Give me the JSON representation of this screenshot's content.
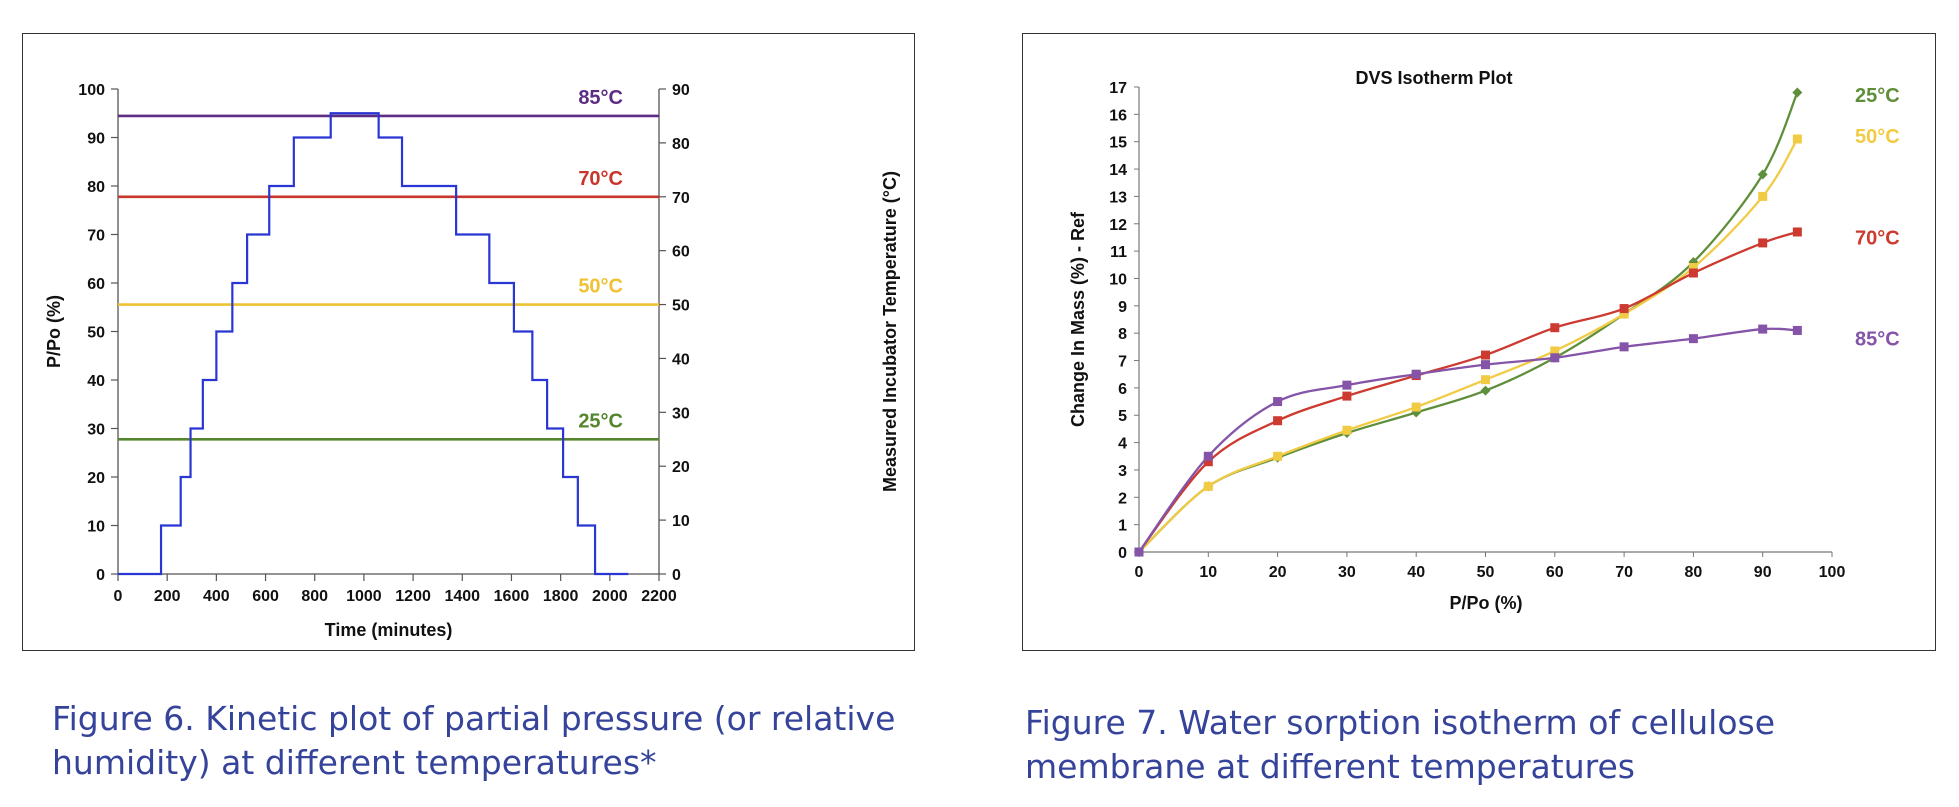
{
  "figure6": {
    "caption": "Figure 6.  Kinetic plot of partial pressure (or relative humidity) at different temperatures*"
  },
  "figure7": {
    "caption": "Figure 7.  Water sorption isotherm of cellulose membrane at different temperatures"
  },
  "chart_data": [
    {
      "type": "line",
      "title": "",
      "xlabel": "Time (minutes)",
      "ylabel": "P/Po (%)",
      "y2label": "Measured Incubator Temperature (°C)",
      "xlim": [
        0,
        2200
      ],
      "ylim": [
        0,
        100
      ],
      "y2lim": [
        0,
        90
      ],
      "xticks": [
        0,
        200,
        400,
        600,
        800,
        1000,
        1200,
        1400,
        1600,
        1800,
        2000,
        2200
      ],
      "yticks": [
        0,
        10,
        20,
        30,
        40,
        50,
        60,
        70,
        80,
        90,
        100
      ],
      "y2ticks": [
        0,
        10,
        20,
        30,
        40,
        50,
        60,
        70,
        80,
        90
      ],
      "grid": false,
      "series": [
        {
          "color": "#2a36d4",
          "step": true,
          "x": [
            0,
            175,
            255,
            295,
            345,
            400,
            465,
            525,
            615,
            715,
            865,
            1060,
            1155,
            1375,
            1510,
            1610,
            1685,
            1745,
            1810,
            1870,
            1940,
            2075
          ],
          "y": [
            0,
            10,
            20,
            30,
            40,
            50,
            60,
            70,
            80,
            90,
            95,
            90,
            80,
            70,
            60,
            50,
            40,
            30,
            20,
            10,
            0,
            0
          ]
        }
      ],
      "reference_lines": [
        {
          "label": "85°C",
          "temperature": 85,
          "color": "#5c2d83"
        },
        {
          "label": "70°C",
          "temperature": 70,
          "color": "#c8352b"
        },
        {
          "label": "50°C",
          "temperature": 50,
          "color": "#f0c233"
        },
        {
          "label": "25°C",
          "temperature": 25,
          "color": "#55862e"
        }
      ]
    },
    {
      "type": "line",
      "title": "DVS Isotherm Plot",
      "xlabel": "P/Po (%)",
      "ylabel": "Change In Mass (%) - Ref",
      "xlim": [
        0,
        100
      ],
      "ylim": [
        0,
        17
      ],
      "xticks": [
        0,
        10,
        20,
        30,
        40,
        50,
        60,
        70,
        80,
        90,
        100
      ],
      "yticks": [
        0,
        1,
        2,
        3,
        4,
        5,
        6,
        7,
        8,
        9,
        10,
        11,
        12,
        13,
        14,
        15,
        16,
        17
      ],
      "grid": false,
      "x": [
        0,
        10,
        20,
        30,
        40,
        50,
        60,
        70,
        80,
        90,
        95
      ],
      "series": [
        {
          "name": "25°C",
          "color": "#5f8f3a",
          "marker": "diamond",
          "values": [
            0,
            2.4,
            3.45,
            4.35,
            5.1,
            5.9,
            7.1,
            8.7,
            10.6,
            13.8,
            16.8
          ]
        },
        {
          "name": "50°C",
          "color": "#f2cb45",
          "marker": "square",
          "values": [
            0,
            2.4,
            3.5,
            4.45,
            5.3,
            6.3,
            7.35,
            8.7,
            10.4,
            13.0,
            15.1
          ]
        },
        {
          "name": "70°C",
          "color": "#cc3a30",
          "marker": "square",
          "values": [
            0,
            3.3,
            4.8,
            5.7,
            6.45,
            7.2,
            8.2,
            8.9,
            10.2,
            11.3,
            11.7
          ]
        },
        {
          "name": "85°C",
          "color": "#8553a7",
          "marker": "square",
          "values": [
            0,
            3.5,
            5.5,
            6.1,
            6.5,
            6.85,
            7.1,
            7.5,
            7.8,
            8.15,
            8.1
          ]
        }
      ]
    }
  ]
}
